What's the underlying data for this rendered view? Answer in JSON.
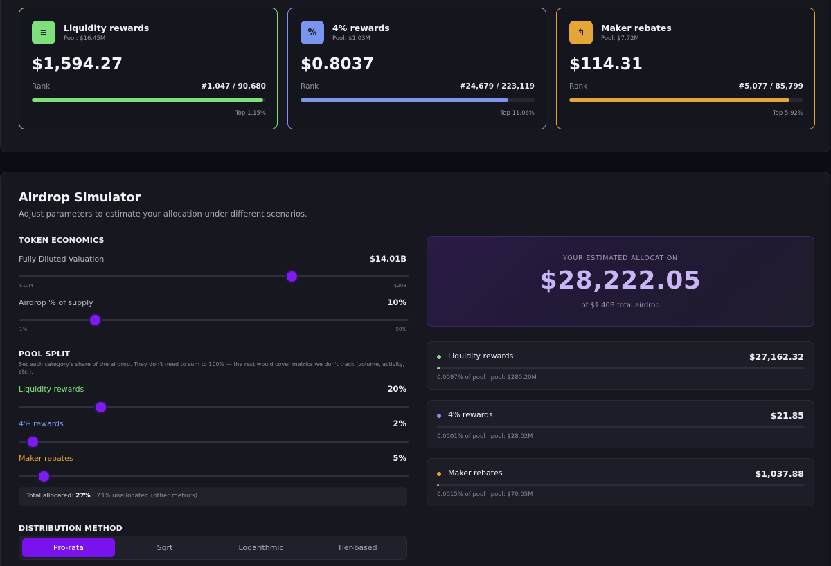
{
  "cards": [
    {
      "title": "Liquidity rewards",
      "pool": "Pool: $16.45M",
      "value": "$1,594.27",
      "rank_label": "Rank",
      "rank": "#1,047 / 90,680",
      "top": "Top 1.15%",
      "progress": 0.988,
      "color": "#7ee07b",
      "icon": "list-lines-icon",
      "glyph": "≡"
    },
    {
      "title": "4% rewards",
      "pool": "Pool: $1.03M",
      "value": "$0.8037",
      "rank_label": "Rank",
      "rank": "#24,679 / 223,119",
      "top": "Top 11.06%",
      "progress": 0.889,
      "color": "#7b94ee",
      "icon": "percent-icon",
      "glyph": "%"
    },
    {
      "title": "Maker rebates",
      "pool": "Pool: $7.72M",
      "value": "$114.31",
      "rank_label": "Rank",
      "rank": "#5,077 / 85,799",
      "top": "Top 5.92%",
      "progress": 0.941,
      "color": "#e4a636",
      "icon": "return-arrow-icon",
      "glyph": "↰"
    }
  ],
  "simulator": {
    "title": "Airdrop Simulator",
    "subtitle": "Adjust parameters to estimate your allocation under different scenarios.",
    "token_economics": {
      "heading": "TOKEN ECONOMICS",
      "fdv": {
        "label": "Fully Diluted Valuation",
        "value": "$14.01B",
        "min": "$10M",
        "max": "$20B",
        "position": 0.7
      },
      "airdrop": {
        "label": "Airdrop % of supply",
        "value": "10%",
        "min": "1%",
        "max": "50%",
        "position": 0.194
      }
    },
    "pool_split": {
      "heading": "POOL SPLIT",
      "note": "Set each category's share of the airdrop. They don't need to sum to 100% — the rest would cover metrics we don't track (volume, activity, etc.).",
      "sliders": [
        {
          "label": "Liquidity rewards",
          "value": "20%",
          "position": 0.208,
          "color": "#7ee07b"
        },
        {
          "label": "4% rewards",
          "value": "2%",
          "position": 0.033,
          "color": "#7b94ee"
        },
        {
          "label": "Maker rebates",
          "value": "5%",
          "position": 0.062,
          "color": "#e4a636"
        }
      ],
      "total_label": "Total allocated:",
      "total_value": "27%",
      "unallocated": "· 73% unallocated (other metrics)"
    },
    "distribution": {
      "heading": "DISTRIBUTION METHOD",
      "options": [
        "Pro-rata",
        "Sqrt",
        "Logarithmic",
        "Tier-based"
      ],
      "selected": "Pro-rata"
    },
    "estimate": {
      "label": "YOUR ESTIMATED ALLOCATION",
      "value": "$28,222.05",
      "sub": "of $1.40B total airdrop"
    },
    "breakdown": [
      {
        "name": "Liquidity rewards",
        "value": "$27,162.32",
        "meta": "0.0097% of pool  ·  pool: $280.20M",
        "color": "#7ee07b",
        "progress": 0.009
      },
      {
        "name": "4% rewards",
        "value": "$21.85",
        "meta": "0.0001% of pool  ·  pool: $28.02M",
        "color": "#7b94ee",
        "progress": 0.0
      },
      {
        "name": "Maker rebates",
        "value": "$1,037.88",
        "meta": "0.0015% of pool  ·  pool: $70.05M",
        "color": "#e4a636",
        "progress": 0.002
      }
    ]
  }
}
